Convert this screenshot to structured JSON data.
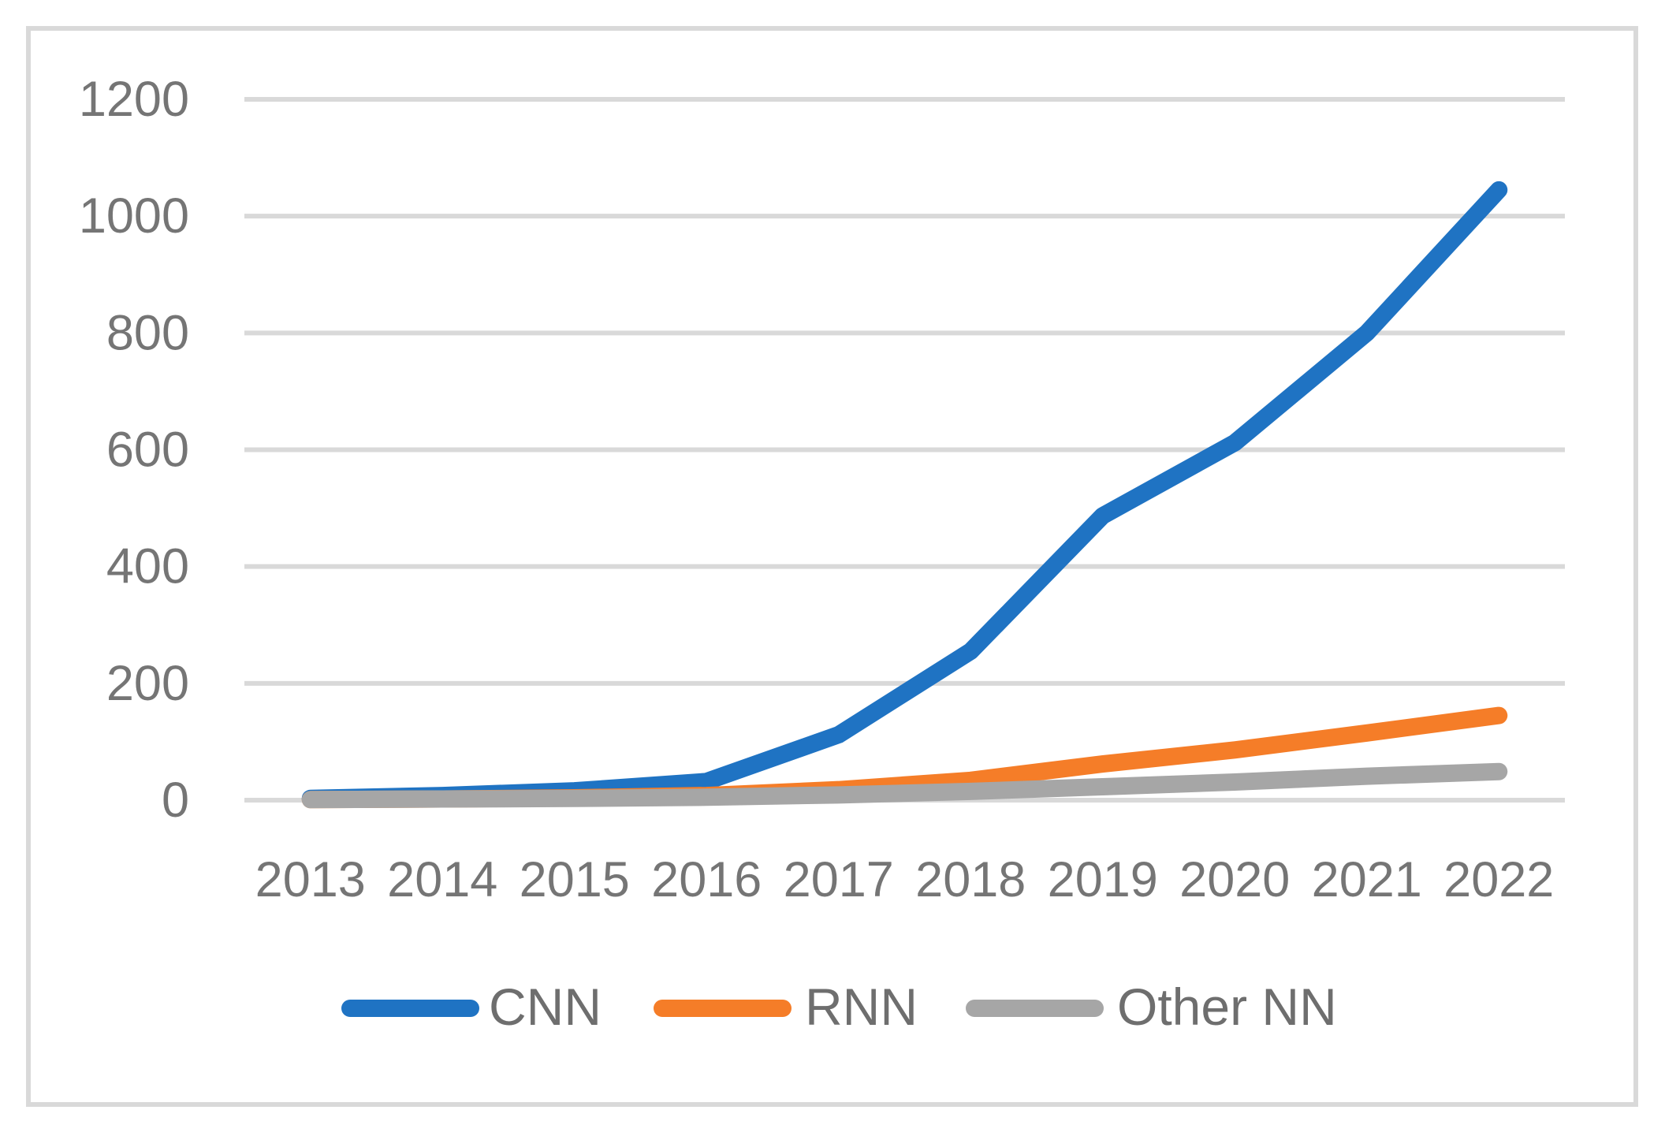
{
  "chart_data": {
    "type": "line",
    "title": "",
    "xlabel": "",
    "ylabel": "",
    "categories": [
      "2013",
      "2014",
      "2015",
      "2016",
      "2017",
      "2018",
      "2019",
      "2020",
      "2021",
      "2022"
    ],
    "series": [
      {
        "name": "CNN",
        "color": "#1F73C3",
        "values": [
          3,
          8,
          16,
          32,
          112,
          255,
          487,
          612,
          800,
          1045
        ]
      },
      {
        "name": "RNN",
        "color": "#F57D28",
        "values": [
          1,
          2,
          4,
          8,
          18,
          34,
          62,
          86,
          115,
          145
        ]
      },
      {
        "name": "Other NN",
        "color": "#A6A6A6",
        "values": [
          1,
          2,
          3,
          5,
          9,
          15,
          23,
          31,
          41,
          49
        ]
      }
    ],
    "ylim": [
      0,
      1200
    ],
    "yticks": [
      0,
      200,
      400,
      600,
      800,
      1000,
      1200
    ],
    "grid": true,
    "legend_position": "bottom",
    "colors": {
      "gridline": "#D9D9D9",
      "axis_label": "#757575",
      "legend_label": "#6E6E6E",
      "frame_border": "#D9D9D9",
      "background": "#FFFFFF"
    }
  }
}
